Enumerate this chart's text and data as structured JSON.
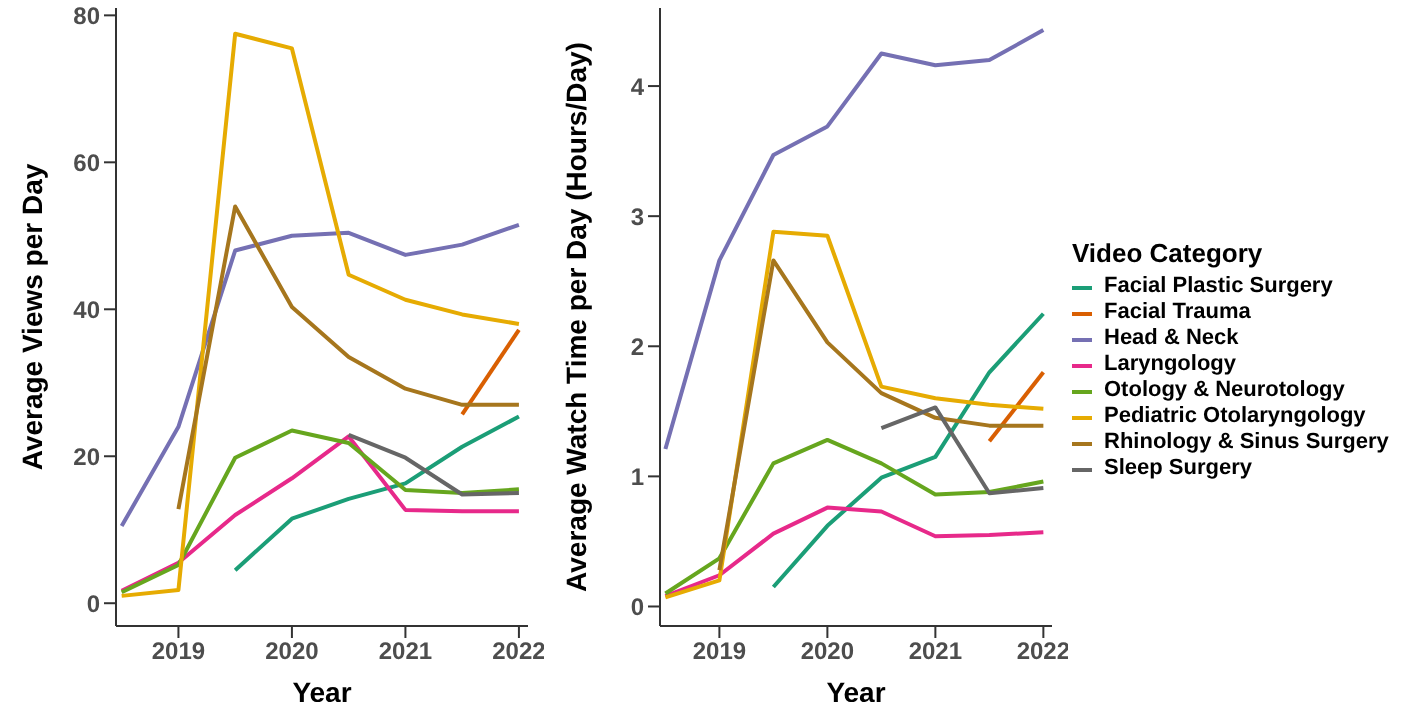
{
  "chart_data": [
    {
      "type": "line",
      "xlabel": "Year",
      "ylabel": "Average Views per Day",
      "x": [
        2018.5,
        2019,
        2019.5,
        2020,
        2020.5,
        2021,
        2021.5,
        2022
      ],
      "xlim": [
        2018.45,
        2022.08
      ],
      "xticks": [
        2019,
        2020,
        2021,
        2022
      ],
      "ylim": [
        -3.1,
        81
      ],
      "yticks": [
        0,
        20,
        40,
        60,
        80
      ],
      "grid": false,
      "legend": false,
      "series": [
        {
          "color": "#1b9e77",
          "values": [
            null,
            null,
            4.5,
            11.5,
            14.2,
            16.3,
            21.3,
            25.4
          ]
        },
        {
          "color": "#d95f02",
          "values": [
            null,
            null,
            null,
            null,
            null,
            null,
            25.7,
            37.2
          ]
        },
        {
          "color": "#7570b3",
          "values": [
            10.5,
            24,
            48,
            50,
            50.4,
            47.4,
            48.8,
            51.5
          ]
        },
        {
          "color": "#e7298a",
          "values": [
            1.7,
            5.5,
            12,
            17,
            22.7,
            12.7,
            12.5,
            12.5
          ]
        },
        {
          "color": "#66a61e",
          "values": [
            1.5,
            5.2,
            19.8,
            23.5,
            21.8,
            15.4,
            15,
            15.5
          ]
        },
        {
          "color": "#e6ab02",
          "values": [
            1,
            1.8,
            77.5,
            75.5,
            44.7,
            41.3,
            39.3,
            38
          ]
        },
        {
          "color": "#a6761d",
          "values": [
            null,
            12.8,
            54,
            40.3,
            33.5,
            29.2,
            27,
            27
          ]
        },
        {
          "color": "#666666",
          "values": [
            null,
            null,
            null,
            null,
            22.9,
            19.8,
            14.8,
            15
          ]
        }
      ]
    },
    {
      "type": "line",
      "xlabel": "Year",
      "ylabel": "Average Watch Time per Day (Hours/Day)",
      "legend_title": "Video Category",
      "x": [
        2018.5,
        2019,
        2019.5,
        2020,
        2020.5,
        2021,
        2021.5,
        2022
      ],
      "xlim": [
        2018.45,
        2022.08
      ],
      "xticks": [
        2019,
        2020,
        2021,
        2022
      ],
      "ylim": [
        -0.15,
        4.6
      ],
      "yticks": [
        0,
        1,
        2,
        3,
        4
      ],
      "grid": false,
      "legend": "right",
      "series": [
        {
          "name": "Facial Plastic Surgery",
          "color": "#1b9e77",
          "values": [
            null,
            null,
            0.15,
            0.62,
            0.99,
            1.15,
            1.8,
            2.25
          ]
        },
        {
          "name": "Facial Trauma",
          "color": "#d95f02",
          "values": [
            null,
            null,
            null,
            null,
            null,
            null,
            1.27,
            1.8
          ]
        },
        {
          "name": "Head & Neck",
          "color": "#7570b3",
          "values": [
            1.21,
            2.66,
            3.47,
            3.69,
            4.25,
            4.16,
            4.2,
            4.43
          ]
        },
        {
          "name": "Laryngology",
          "color": "#e7298a",
          "values": [
            0.08,
            0.24,
            0.56,
            0.76,
            0.73,
            0.54,
            0.55,
            0.57
          ]
        },
        {
          "name": "Otology & Neurotology",
          "color": "#66a61e",
          "values": [
            0.1,
            0.37,
            1.1,
            1.28,
            1.1,
            0.86,
            0.88,
            0.96
          ]
        },
        {
          "name": "Pediatric Otolaryngology",
          "color": "#e6ab02",
          "values": [
            0.07,
            0.2,
            2.88,
            2.85,
            1.69,
            1.6,
            1.55,
            1.52
          ]
        },
        {
          "name": "Rhinology & Sinus Surgery",
          "color": "#a6761d",
          "values": [
            null,
            0.28,
            2.66,
            2.03,
            1.64,
            1.45,
            1.39,
            1.39
          ]
        },
        {
          "name": "Sleep Surgery",
          "color": "#666666",
          "values": [
            null,
            null,
            null,
            null,
            1.37,
            1.53,
            0.87,
            0.91
          ]
        }
      ]
    }
  ]
}
